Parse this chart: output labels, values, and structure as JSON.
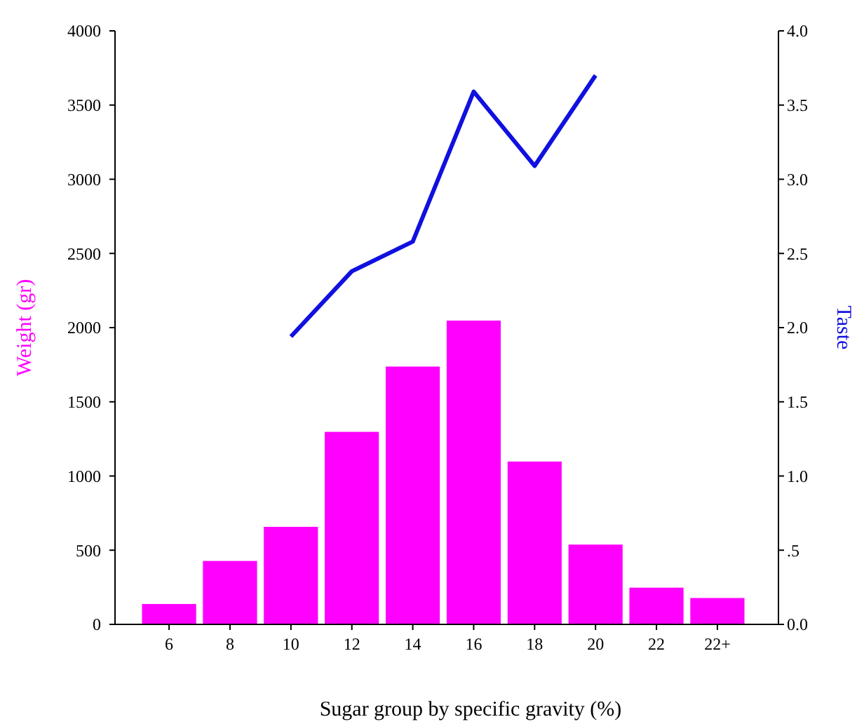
{
  "chart_data": {
    "type": "bar",
    "xlabel": "Sugar group by specific gravity (%)",
    "ylabel": "Weight (gr)",
    "y2label": "Taste",
    "categories": [
      "6",
      "8",
      "10",
      "12",
      "14",
      "16",
      "18",
      "20",
      "22",
      "22+"
    ],
    "series": [
      {
        "color": "#ff00ff",
        "values": [
          140,
          430,
          660,
          1300,
          1740,
          2050,
          1100,
          540,
          250,
          180
        ]
      },
      {
        "type": "line",
        "axis": "y2",
        "color": "#1010e0",
        "values": [
          null,
          null,
          1.94,
          2.38,
          2.58,
          3.59,
          3.09,
          3.7,
          null,
          null
        ]
      }
    ],
    "ylim": [
      0,
      4000
    ],
    "yticks": [
      0,
      500,
      1000,
      1500,
      2000,
      2500,
      3000,
      3500,
      4000
    ],
    "y2lim": [
      0,
      4
    ],
    "y2ticks": [
      {
        "value": 0,
        "label": "0.0"
      },
      {
        "value": 0.5,
        "label": ".5"
      },
      {
        "value": 1,
        "label": "1.0"
      },
      {
        "value": 1.5,
        "label": "1.5"
      },
      {
        "value": 2,
        "label": "2.0"
      },
      {
        "value": 2.5,
        "label": "2.5"
      },
      {
        "value": 3,
        "label": "3.0"
      },
      {
        "value": 3.5,
        "label": "3.5"
      },
      {
        "value": 4,
        "label": "4.0"
      }
    ],
    "grid": false,
    "marker": "none",
    "line_style": "solid"
  }
}
